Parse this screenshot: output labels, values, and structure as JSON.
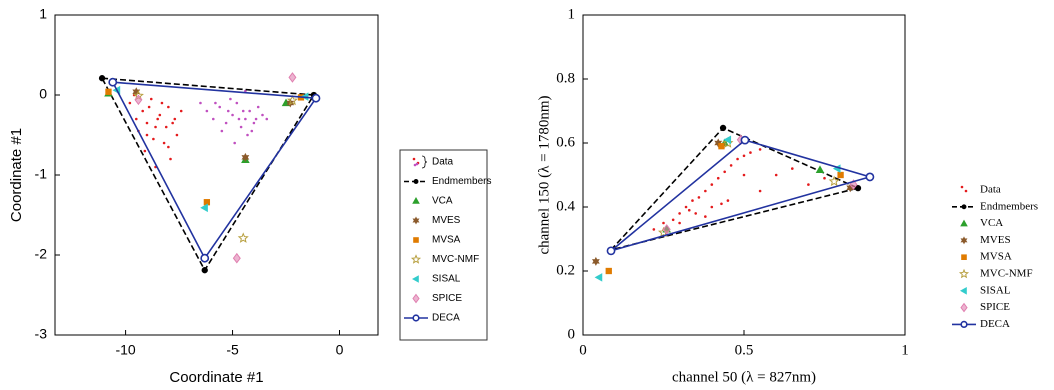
{
  "chart_data": [
    {
      "type": "scatter",
      "xlabel": "Coordinate #1",
      "ylabel": "Coordinate #1",
      "xlim": [
        -13.3,
        1.8
      ],
      "ylim": [
        -3,
        1
      ],
      "xticks": [
        -10,
        -5,
        0
      ],
      "yticks": [
        -3,
        -2,
        -1,
        0,
        1
      ],
      "legend": "outside right",
      "series": [
        {
          "name": "Data",
          "marker": "dot",
          "groups": [
            {
              "color": "#e41a1c",
              "x": [
                -9.8,
                -9.5,
                -9.2,
                -9.0,
                -8.8,
                -8.6,
                -8.4,
                -8.2,
                -8.0,
                -7.8,
                -7.6,
                -9.1,
                -8.7,
                -8.3,
                -7.9,
                -9.4,
                -8.5,
                -8.1,
                -7.4,
                -9.6,
                -8.9,
                -8.0,
                -8.6,
                -7.7,
                -9.0
              ],
              "y": [
                -0.1,
                -0.3,
                -0.2,
                -0.5,
                -0.05,
                -0.4,
                -0.25,
                -0.6,
                -0.15,
                -0.35,
                -0.5,
                -0.7,
                -0.55,
                -0.1,
                -0.8,
                -0.45,
                -0.3,
                -0.4,
                -0.2,
                0.0,
                -0.15,
                -0.65,
                -0.9,
                -0.3,
                -0.35
              ]
            },
            {
              "color": "#c050c0",
              "x": [
                -6.2,
                -5.9,
                -5.6,
                -5.3,
                -5.0,
                -4.8,
                -4.6,
                -4.4,
                -4.2,
                -4.0,
                -3.8,
                -3.6,
                -5.5,
                -5.1,
                -4.7,
                -4.3,
                -3.9,
                -5.8,
                -4.5,
                -4.9,
                -4.1,
                -5.2,
                -4.4,
                -6.5,
                -3.4
              ],
              "y": [
                -0.2,
                -0.3,
                -0.15,
                -0.35,
                -0.25,
                -0.1,
                -0.4,
                -0.3,
                -0.2,
                -0.35,
                -0.15,
                -0.25,
                -0.45,
                -0.05,
                -0.3,
                -0.5,
                -0.3,
                -0.1,
                -0.2,
                -0.6,
                -0.45,
                -0.2,
                0.05,
                -0.1,
                -0.3
              ]
            }
          ]
        },
        {
          "name": "Endmembers",
          "marker": "circle",
          "line": "dashed",
          "color": "#000000",
          "x": [
            -11.1,
            -1.2,
            -6.3
          ],
          "y": [
            0.21,
            0.0,
            -2.19
          ]
        },
        {
          "name": "VCA",
          "marker": "triangle",
          "color": "#2ca02c",
          "x": [
            -10.8,
            -2.5,
            -4.4
          ],
          "y": [
            0.02,
            -0.1,
            -0.81
          ]
        },
        {
          "name": "MVES",
          "marker": "hexagon",
          "color": "#8b5a2b",
          "x": [
            -9.5,
            -2.3,
            -4.4
          ],
          "y": [
            0.04,
            -0.1,
            -0.78
          ]
        },
        {
          "name": "MVSA",
          "marker": "square",
          "color": "#e07b00",
          "x": [
            -10.8,
            -6.2,
            -1.8
          ],
          "y": [
            0.04,
            -1.34,
            -0.03
          ]
        },
        {
          "name": "MVC-NMF",
          "marker": "star",
          "color": "#b8a040",
          "x": [
            -9.4,
            -2.2,
            -4.5
          ],
          "y": [
            -0.01,
            -0.07,
            -1.79
          ]
        },
        {
          "name": "SISAL",
          "marker": "tri-left",
          "color": "#33cccc",
          "x": [
            -10.4,
            -6.3,
            -1.6
          ],
          "y": [
            0.06,
            -1.41,
            -0.02
          ]
        },
        {
          "name": "SPICE",
          "marker": "diamond",
          "color": "#e080b0",
          "x": [
            -2.2,
            -4.8,
            -9.4
          ],
          "y": [
            0.22,
            -2.04,
            -0.06
          ]
        },
        {
          "name": "DECA",
          "marker": "open-circle",
          "line": "solid",
          "color": "#2233a0",
          "x": [
            -10.6,
            -1.1,
            -6.3
          ],
          "y": [
            0.16,
            -0.04,
            -2.04
          ]
        }
      ]
    },
    {
      "type": "scatter",
      "xlabel": "channel 50 (λ = 827nm)",
      "ylabel": "channel 150 (λ = 1780nm)",
      "xlim": [
        0,
        1
      ],
      "ylim": [
        0,
        1
      ],
      "xticks": [
        0,
        0.5,
        1
      ],
      "yticks": [
        0,
        0.2,
        0.4,
        0.6,
        0.8,
        1
      ],
      "legend": "outside right",
      "series": [
        {
          "name": "Data",
          "marker": "dot",
          "groups": [
            {
              "color": "#e41a1c",
              "x": [
                0.22,
                0.25,
                0.28,
                0.3,
                0.32,
                0.34,
                0.36,
                0.38,
                0.4,
                0.42,
                0.44,
                0.46,
                0.48,
                0.5,
                0.52,
                0.55,
                0.3,
                0.35,
                0.4,
                0.45,
                0.6,
                0.65,
                0.7,
                0.75,
                0.55,
                0.38,
                0.43,
                0.33,
                0.5,
                0.8
              ],
              "y": [
                0.33,
                0.35,
                0.36,
                0.38,
                0.4,
                0.42,
                0.43,
                0.45,
                0.47,
                0.49,
                0.51,
                0.53,
                0.55,
                0.56,
                0.57,
                0.58,
                0.35,
                0.38,
                0.4,
                0.42,
                0.5,
                0.52,
                0.47,
                0.49,
                0.45,
                0.37,
                0.41,
                0.39,
                0.5,
                0.5
              ]
            }
          ]
        },
        {
          "name": "Endmembers",
          "marker": "circle",
          "line": "dashed",
          "color": "#000000",
          "x": [
            0.087,
            0.435,
            0.854
          ],
          "y": [
            0.266,
            0.647,
            0.459
          ]
        },
        {
          "name": "VCA",
          "marker": "triangle",
          "color": "#2ca02c",
          "x": [
            0.736,
            0.44,
            0.26
          ],
          "y": [
            0.516,
            0.6,
            0.33
          ]
        },
        {
          "name": "MVES",
          "marker": "hexagon",
          "color": "#8b5a2b",
          "x": [
            0.04,
            0.42,
            0.83
          ],
          "y": [
            0.23,
            0.6,
            0.46
          ]
        },
        {
          "name": "MVSA",
          "marker": "square",
          "color": "#e07b00",
          "x": [
            0.08,
            0.43,
            0.8
          ],
          "y": [
            0.2,
            0.59,
            0.5
          ]
        },
        {
          "name": "MVC-NMF",
          "marker": "star",
          "color": "#b8a040",
          "x": [
            0.78,
            0.45,
            0.25
          ],
          "y": [
            0.48,
            0.6,
            0.32
          ]
        },
        {
          "name": "SISAL",
          "marker": "tri-left",
          "color": "#33cccc",
          "x": [
            0.05,
            0.45,
            0.79
          ],
          "y": [
            0.18,
            0.61,
            0.52
          ]
        },
        {
          "name": "SPICE",
          "marker": "diamond",
          "color": "#e080b0",
          "x": [
            0.49,
            0.84,
            0.26
          ],
          "y": [
            0.61,
            0.47,
            0.33
          ]
        },
        {
          "name": "DECA",
          "marker": "open-circle",
          "line": "solid",
          "color": "#2233a0",
          "x": [
            0.087,
            0.503,
            0.891
          ],
          "y": [
            0.263,
            0.609,
            0.494
          ]
        }
      ]
    }
  ]
}
